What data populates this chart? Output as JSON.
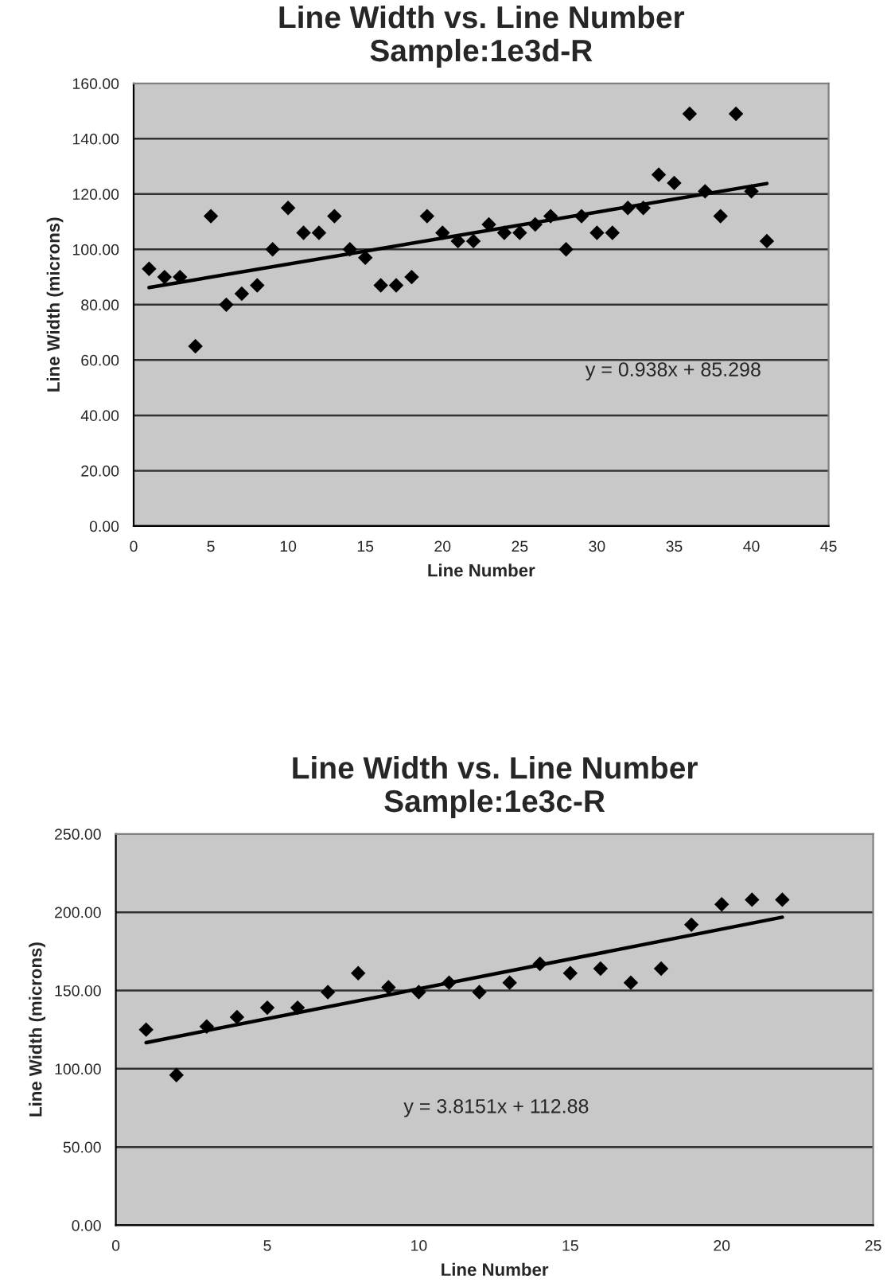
{
  "chart_data": [
    {
      "type": "scatter",
      "title": "Line Width vs. Line Number\nSample:1e3d-R",
      "xlabel": "Line Number",
      "ylabel": "Line Width (microns)",
      "grid": "y",
      "legend": false,
      "xlim": [
        0,
        45
      ],
      "xticks": [
        0,
        5,
        10,
        15,
        20,
        25,
        30,
        35,
        40,
        45
      ],
      "ylim": [
        0,
        160
      ],
      "yticks": [
        {
          "value": 0,
          "label": "0.00"
        },
        {
          "value": 20,
          "label": "20.00"
        },
        {
          "value": 40,
          "label": "40.00"
        },
        {
          "value": 60,
          "label": "60.00"
        },
        {
          "value": 80,
          "label": "80.00"
        },
        {
          "value": 100,
          "label": "100.00"
        },
        {
          "value": 120,
          "label": "120.00"
        },
        {
          "value": 140,
          "label": "140.00"
        },
        {
          "value": 160,
          "label": "160.00"
        }
      ],
      "annotations": [
        "y = 0.938x + 85.298"
      ],
      "series": [
        {
          "marker": "diamond",
          "color": "#000000",
          "x": [
            1,
            2,
            3,
            4,
            5,
            6,
            7,
            8,
            9,
            10,
            11,
            12,
            13,
            14,
            15,
            16,
            17,
            18,
            19,
            20,
            21,
            22,
            23,
            24,
            25,
            26,
            27,
            28,
            29,
            30,
            31,
            32,
            33,
            34,
            35,
            36,
            37,
            38,
            39,
            40,
            41
          ],
          "values": [
            93,
            90,
            90,
            65,
            112,
            80,
            84,
            87,
            100,
            115,
            106,
            106,
            112,
            100,
            97,
            87,
            87,
            90,
            112,
            106,
            103,
            103,
            109,
            106,
            106,
            109,
            112,
            100,
            112,
            106,
            106,
            115,
            115,
            127,
            124,
            149,
            121,
            112,
            149,
            121,
            103
          ]
        },
        {
          "type": "line",
          "marker": "none",
          "color": "#000000",
          "x": [
            1,
            41
          ],
          "values": [
            86.2,
            123.8
          ]
        }
      ]
    },
    {
      "type": "scatter",
      "title": "Line Width vs. Line Number\nSample:1e3c-R",
      "xlabel": "Line Number",
      "ylabel": "Line Width (microns)",
      "grid": "y",
      "legend": false,
      "xlim": [
        0,
        25
      ],
      "xticks": [
        0,
        5,
        10,
        15,
        20,
        25
      ],
      "ylim": [
        0,
        250
      ],
      "yticks": [
        {
          "value": 0,
          "label": "0.00"
        },
        {
          "value": 50,
          "label": "50.00"
        },
        {
          "value": 100,
          "label": "100.00"
        },
        {
          "value": 150,
          "label": "150.00"
        },
        {
          "value": 200,
          "label": "200.00"
        },
        {
          "value": 250,
          "label": "250.00"
        }
      ],
      "annotations": [
        "y = 3.8151x + 112.88"
      ],
      "series": [
        {
          "marker": "diamond",
          "color": "#000000",
          "x": [
            1,
            2,
            3,
            4,
            5,
            6,
            7,
            8,
            9,
            10,
            11,
            12,
            13,
            14,
            15,
            16,
            17,
            18,
            19,
            20,
            21,
            22
          ],
          "values": [
            125,
            96,
            127,
            133,
            139,
            139,
            149,
            161,
            152,
            149,
            155,
            149,
            155,
            167,
            161,
            164,
            155,
            164,
            192,
            205,
            208,
            208
          ]
        },
        {
          "type": "line",
          "marker": "none",
          "color": "#000000",
          "x": [
            1,
            22
          ],
          "values": [
            116.7,
            196.8
          ]
        }
      ]
    }
  ]
}
